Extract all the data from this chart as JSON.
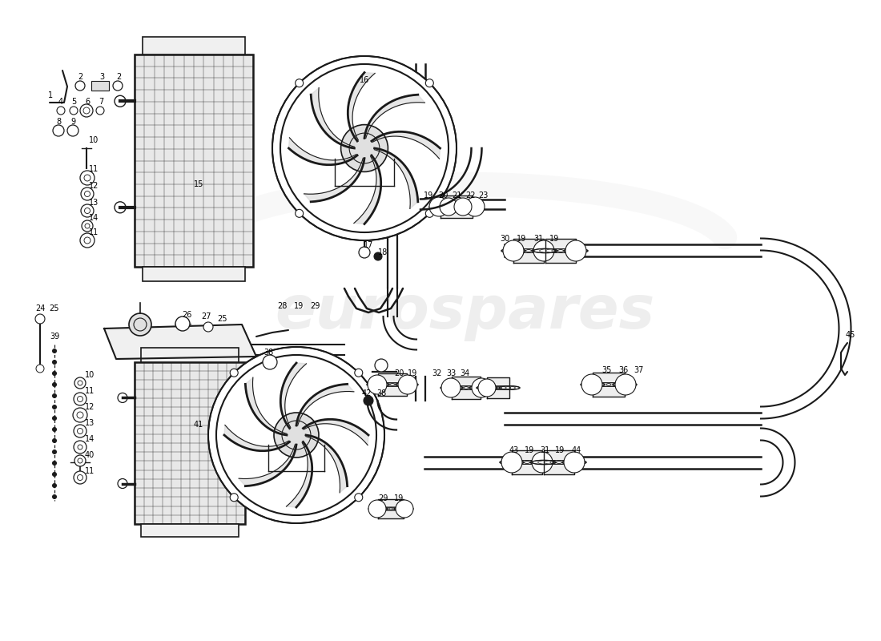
{
  "bg_color": "#ffffff",
  "line_color": "#1a1a1a",
  "fig_width": 11.0,
  "fig_height": 8.0,
  "dpi": 100
}
